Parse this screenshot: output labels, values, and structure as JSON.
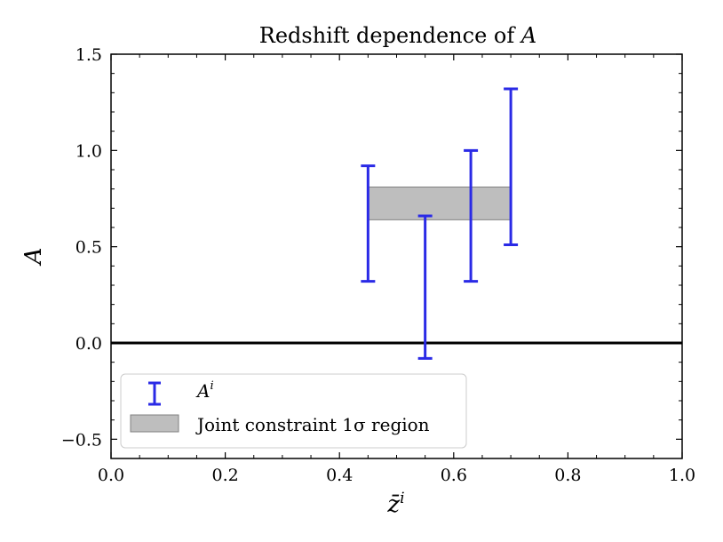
{
  "chart_data": {
    "type": "errorbar",
    "title": "Redshift dependence of A",
    "title_prefix": "Redshift dependence of",
    "title_symbol": "A",
    "xlabel": "z̄",
    "xlabel_sup": "i",
    "ylabel": "A",
    "xlim": [
      0.0,
      1.0
    ],
    "ylim": [
      -0.6,
      1.5
    ],
    "xticks": [
      0.0,
      0.2,
      0.4,
      0.6,
      0.8,
      1.0
    ],
    "xtick_labels": [
      "0.0",
      "0.2",
      "0.4",
      "0.6",
      "0.8",
      "1.0"
    ],
    "yticks": [
      -0.5,
      0.0,
      0.5,
      1.0,
      1.5
    ],
    "ytick_labels": [
      "−0.5",
      "0.0",
      "0.5",
      "1.0",
      "1.5"
    ],
    "x_minor_step": 0.05,
    "y_minor_step": 0.1,
    "zero_line": 0.0,
    "series": [
      {
        "name": "A^i",
        "legend_label": "A",
        "legend_sup": "i",
        "color": "#2a2ae6",
        "points": [
          {
            "x": 0.45,
            "low": 0.32,
            "high": 0.92
          },
          {
            "x": 0.55,
            "low": -0.08,
            "high": 0.66
          },
          {
            "x": 0.63,
            "low": 0.32,
            "high": 1.0
          },
          {
            "x": 0.7,
            "low": 0.51,
            "high": 1.32
          }
        ]
      }
    ],
    "band": {
      "name": "Joint constraint 1σ region",
      "legend_label": "Joint constraint 1σ region",
      "x_range": [
        0.45,
        0.7
      ],
      "y_range": [
        0.64,
        0.81
      ],
      "color": "#bebebe",
      "edge_color": "#808080"
    },
    "legend_location": "lower-left"
  }
}
